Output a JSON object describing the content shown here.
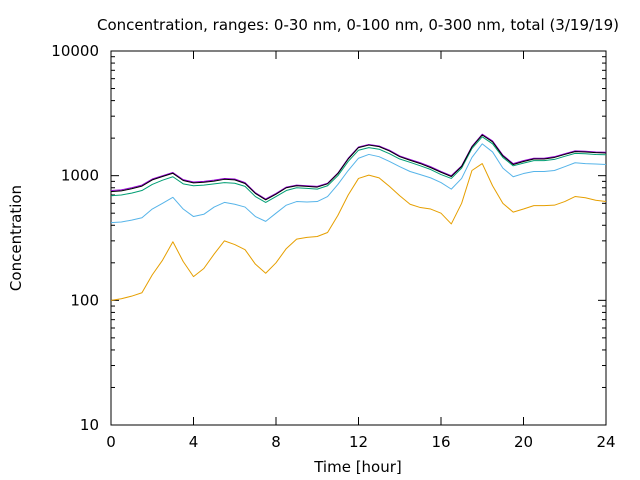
{
  "chart_data": {
    "type": "line",
    "title": "Concentration, ranges: 0-30 nm, 0-100 nm, 0-300 nm, total (3/19/19)",
    "xlabel": "Time [hour]",
    "ylabel": "Concentration",
    "xlim": [
      0,
      24
    ],
    "ylim": [
      10,
      10000
    ],
    "yscale": "log",
    "grid": false,
    "legend": "none",
    "x_ticks": [
      0,
      4,
      8,
      12,
      16,
      20,
      24
    ],
    "x_tick_labels": [
      "0",
      "4",
      "8",
      "12",
      "16",
      "20",
      "24"
    ],
    "y_ticks": [
      10,
      100,
      1000,
      10000
    ],
    "y_tick_labels": [
      "10",
      "100",
      "1000",
      "10000"
    ],
    "x": [
      0,
      0.5,
      1,
      1.5,
      2,
      2.5,
      3,
      3.5,
      4,
      4.5,
      5,
      5.5,
      6,
      6.5,
      7,
      7.5,
      8,
      8.5,
      9,
      9.5,
      10,
      10.5,
      11,
      11.5,
      12,
      12.5,
      13,
      13.5,
      14,
      14.5,
      15,
      15.5,
      16,
      16.5,
      17,
      17.5,
      18,
      18.5,
      19,
      19.5,
      20,
      20.5,
      21,
      21.5,
      22,
      22.5,
      23,
      23.5,
      24
    ],
    "series": [
      {
        "color": "#E69F00",
        "values": [
          100,
          103,
          108,
          115,
          160,
          210,
          295,
          205,
          155,
          180,
          235,
          300,
          280,
          255,
          195,
          165,
          200,
          260,
          310,
          320,
          325,
          350,
          480,
          700,
          950,
          1010,
          960,
          820,
          690,
          590,
          555,
          540,
          500,
          410,
          600,
          1100,
          1250,
          830,
          600,
          510,
          540,
          575,
          575,
          580,
          620,
          680,
          665,
          635,
          620
        ]
      },
      {
        "color": "#56B4E9",
        "values": [
          420,
          425,
          440,
          460,
          540,
          600,
          670,
          540,
          470,
          490,
          560,
          610,
          590,
          560,
          470,
          430,
          500,
          580,
          620,
          615,
          620,
          680,
          850,
          1100,
          1380,
          1480,
          1420,
          1300,
          1180,
          1080,
          1020,
          960,
          880,
          780,
          950,
          1400,
          1800,
          1550,
          1150,
          980,
          1040,
          1080,
          1080,
          1100,
          1180,
          1270,
          1250,
          1240,
          1230
        ]
      },
      {
        "color": "#009E73",
        "values": [
          690,
          700,
          725,
          760,
          850,
          920,
          980,
          860,
          830,
          840,
          860,
          880,
          870,
          820,
          680,
          610,
          680,
          760,
          800,
          790,
          780,
          830,
          1000,
          1300,
          1600,
          1680,
          1630,
          1500,
          1360,
          1280,
          1200,
          1120,
          1020,
          950,
          1150,
          1650,
          2050,
          1800,
          1400,
          1200,
          1260,
          1320,
          1320,
          1350,
          1430,
          1510,
          1500,
          1480,
          1470
        ]
      },
      {
        "color": "#9400D3",
        "values": [
          760,
          770,
          800,
          840,
          940,
          1000,
          1060,
          930,
          890,
          900,
          920,
          950,
          940,
          880,
          730,
          650,
          720,
          810,
          840,
          830,
          820,
          870,
          1050,
          1380,
          1700,
          1780,
          1730,
          1600,
          1440,
          1350,
          1270,
          1180,
          1080,
          1000,
          1200,
          1720,
          2150,
          1900,
          1460,
          1250,
          1320,
          1380,
          1380,
          1420,
          1500,
          1580,
          1570,
          1550,
          1540
        ]
      },
      {
        "color": "#000000",
        "values": [
          745,
          755,
          785,
          825,
          925,
          985,
          1045,
          915,
          875,
          885,
          905,
          935,
          925,
          865,
          720,
          640,
          710,
          800,
          830,
          820,
          810,
          860,
          1040,
          1360,
          1680,
          1760,
          1710,
          1580,
          1420,
          1330,
          1250,
          1160,
          1065,
          985,
          1185,
          1700,
          2120,
          1870,
          1440,
          1230,
          1300,
          1360,
          1360,
          1400,
          1480,
          1560,
          1550,
          1530,
          1520
        ]
      }
    ]
  }
}
